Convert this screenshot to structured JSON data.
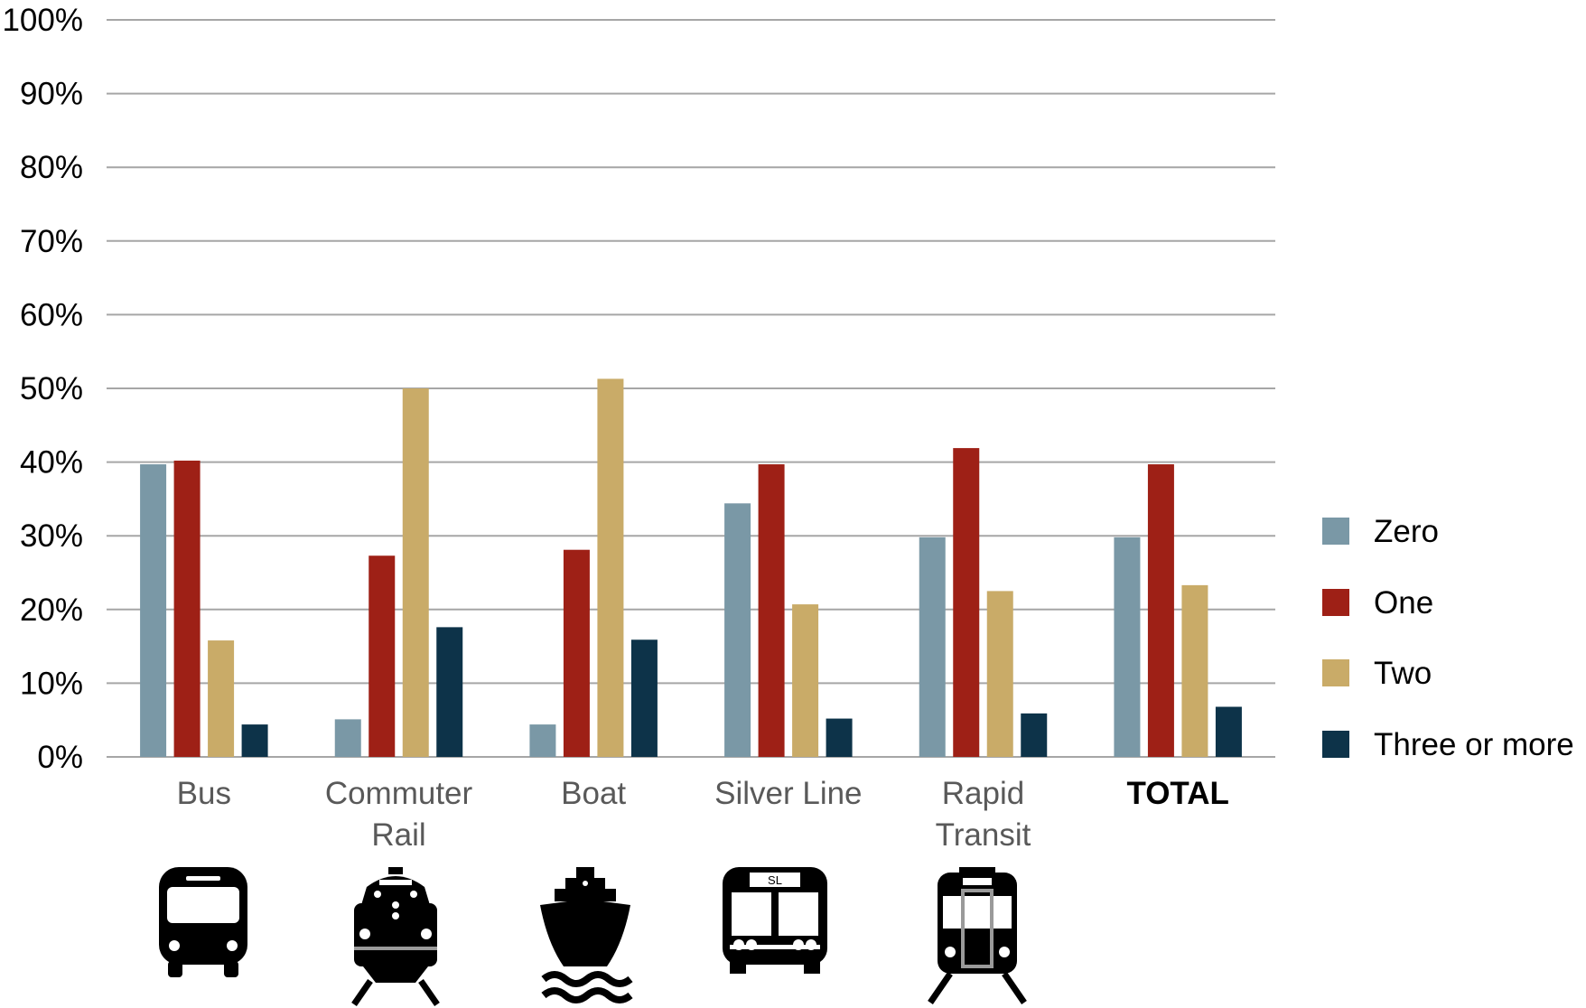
{
  "chart_data": {
    "type": "bar",
    "title": "",
    "xlabel": "",
    "ylabel": "",
    "ylim": [
      0,
      100
    ],
    "yticks": [
      0,
      10,
      20,
      30,
      40,
      50,
      60,
      70,
      80,
      90,
      100
    ],
    "ytick_labels": [
      "0%",
      "10%",
      "20%",
      "30%",
      "40%",
      "50%",
      "60%",
      "70%",
      "80%",
      "90%",
      "100%"
    ],
    "grid": true,
    "legend_position": "right",
    "categories": [
      {
        "label": "Bus",
        "icon": "bus-icon",
        "bold": false
      },
      {
        "label": "Commuter Rail",
        "icon": "commuter-rail-icon",
        "bold": false
      },
      {
        "label": "Boat",
        "icon": "boat-icon",
        "bold": false
      },
      {
        "label": "Silver Line",
        "icon": "silver-line-bus-icon",
        "bold": false
      },
      {
        "label": "Rapid Transit",
        "icon": "rapid-transit-train-icon",
        "bold": false
      },
      {
        "label": "TOTAL",
        "icon": "",
        "bold": true
      }
    ],
    "series": [
      {
        "name": "Zero",
        "color": "#7a98a6",
        "values": [
          39.7,
          5.1,
          4.4,
          34.4,
          29.8,
          29.8
        ]
      },
      {
        "name": "One",
        "color": "#9e2016",
        "values": [
          40.2,
          27.3,
          28.1,
          39.7,
          41.9,
          39.7
        ]
      },
      {
        "name": "Two",
        "color": "#c9ab68",
        "values": [
          15.8,
          50.0,
          51.3,
          20.7,
          22.5,
          23.3
        ]
      },
      {
        "name": "Three or more",
        "color": "#0d3349",
        "values": [
          4.4,
          17.6,
          15.9,
          5.2,
          5.9,
          6.8
        ]
      }
    ],
    "icon_text": {
      "silver_line_sign": "SL"
    }
  }
}
